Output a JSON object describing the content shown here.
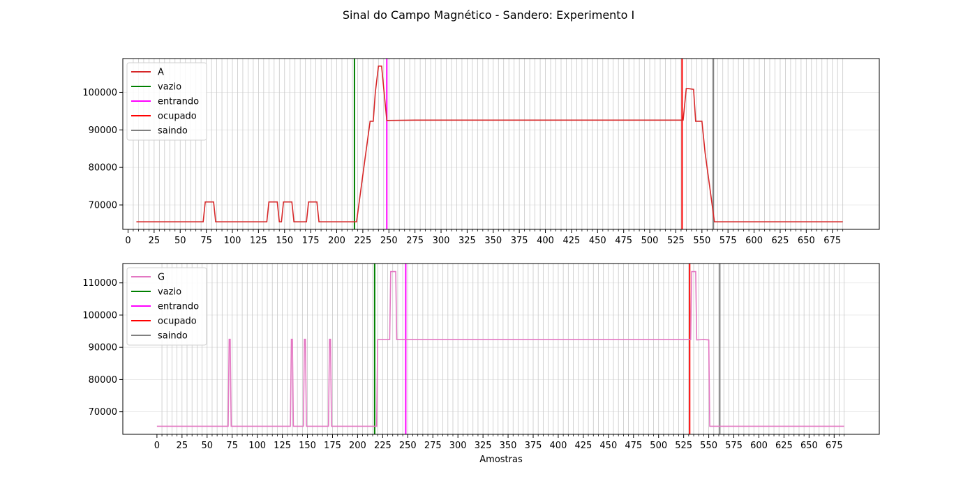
{
  "figure_title": "Sinal do Campo Magnético - Sandero: Experimento I",
  "chart_data": [
    {
      "type": "line",
      "title": "",
      "xlabel": "",
      "ylabel": "",
      "xlim": [
        -5,
        720
      ],
      "ylim": [
        63500,
        109000
      ],
      "xticks": [
        0,
        25,
        50,
        75,
        100,
        125,
        150,
        175,
        200,
        225,
        250,
        275,
        300,
        325,
        350,
        375,
        400,
        425,
        450,
        475,
        500,
        525,
        550,
        575,
        600,
        625,
        650,
        675
      ],
      "yticks": [
        70000,
        80000,
        90000,
        100000
      ],
      "vertical_gridlines_every": 5,
      "vertical_gridlines_start": 5,
      "vertical_gridlines_end": 685,
      "legend_position": "upper-left",
      "series": [
        {
          "name": "A",
          "color": "#d62728",
          "x": [
            8,
            72,
            74,
            82,
            84,
            133,
            135,
            143,
            145,
            147,
            149,
            157,
            159,
            171,
            173,
            181,
            183,
            217,
            219,
            226,
            232,
            235,
            237,
            240,
            243,
            248,
            275,
            530,
            532,
            535,
            537,
            542,
            544,
            550,
            553,
            562,
            564,
            685
          ],
          "y": [
            65500,
            65500,
            70800,
            70800,
            65500,
            65500,
            70800,
            70800,
            65500,
            65500,
            70800,
            70800,
            65500,
            65500,
            70800,
            70800,
            65500,
            65500,
            65500,
            80000,
            92300,
            92300,
            100000,
            107000,
            107000,
            92500,
            92600,
            92600,
            92600,
            101000,
            101000,
            100800,
            92300,
            92300,
            84000,
            65500,
            65500,
            65500
          ]
        }
      ],
      "events": [
        {
          "name": "vazio",
          "color": "#008000",
          "x": 217
        },
        {
          "name": "entrando",
          "color": "#ff00ff",
          "x": 248
        },
        {
          "name": "ocupado",
          "color": "#ff0000",
          "x": 531
        },
        {
          "name": "saindo",
          "color": "#808080",
          "x": 561
        }
      ]
    },
    {
      "type": "line",
      "title": "",
      "xlabel": "Amostras",
      "ylabel": "",
      "xlim": [
        -34,
        720
      ],
      "ylim": [
        63000,
        116000
      ],
      "xticks": [
        0,
        25,
        50,
        75,
        100,
        125,
        150,
        175,
        200,
        225,
        250,
        275,
        300,
        325,
        350,
        375,
        400,
        425,
        450,
        475,
        500,
        525,
        550,
        575,
        600,
        625,
        650,
        675
      ],
      "yticks": [
        70000,
        80000,
        90000,
        100000,
        110000
      ],
      "vertical_gridlines_every": 5,
      "vertical_gridlines_start": 5,
      "vertical_gridlines_end": 685,
      "legend_position": "upper-left",
      "series": [
        {
          "name": "G",
          "color": "#e377c2",
          "x": [
            0,
            71,
            72,
            73,
            74,
            133,
            134,
            135,
            136,
            146,
            147,
            148,
            149,
            171,
            172,
            173,
            174,
            219,
            220,
            232,
            233,
            238,
            239,
            530,
            532,
            533,
            537,
            538,
            545,
            550,
            551,
            552,
            685
          ],
          "y": [
            65500,
            65500,
            92500,
            92500,
            65500,
            65500,
            92500,
            92500,
            65500,
            65500,
            92500,
            92500,
            65500,
            65500,
            92500,
            92500,
            65500,
            65500,
            92400,
            92400,
            113500,
            113500,
            92400,
            92400,
            92400,
            113500,
            113500,
            92300,
            92400,
            92300,
            65500,
            65500,
            65500
          ]
        }
      ],
      "events": [
        {
          "name": "vazio",
          "color": "#008000",
          "x": 217
        },
        {
          "name": "entrando",
          "color": "#ff00ff",
          "x": 248
        },
        {
          "name": "ocupado",
          "color": "#ff0000",
          "x": 531
        },
        {
          "name": "saindo",
          "color": "#808080",
          "x": 561
        }
      ]
    }
  ]
}
